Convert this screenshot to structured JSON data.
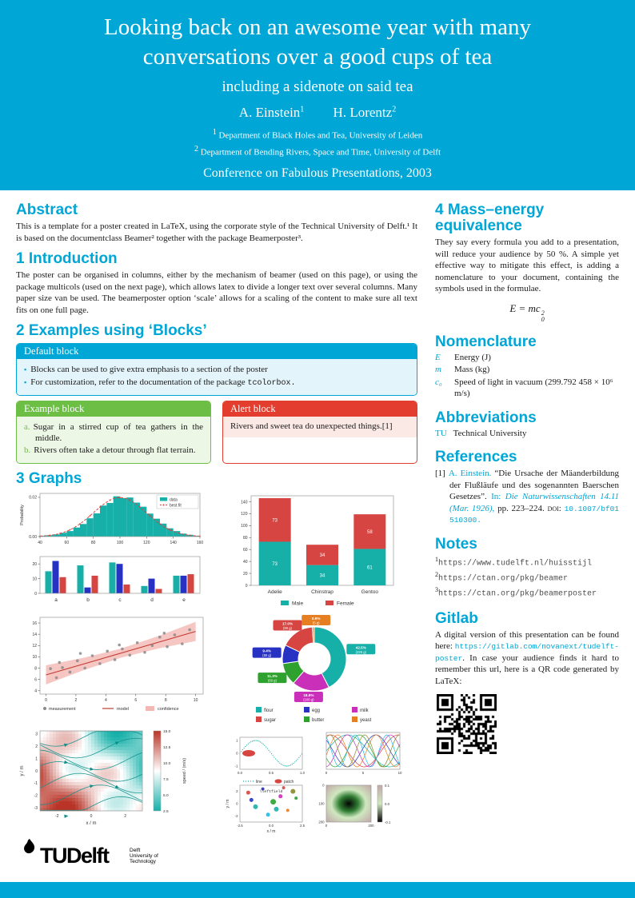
{
  "colors": {
    "accent": "#00A6D6",
    "green": "#6CBE45",
    "alert_red": "#E23D2E"
  },
  "header": {
    "title_line1": "Looking back on an awesome year with many",
    "title_line2": "conversations over a good cups of tea",
    "subtitle": "including a sidenote on said tea",
    "authors": [
      {
        "name": "A. Einstein",
        "sup": "1"
      },
      {
        "name": "H. Lorentz",
        "sup": "2"
      }
    ],
    "affiliations": [
      {
        "sup": "1",
        "text": "Department of Black Holes and Tea, University of Leiden"
      },
      {
        "sup": "2",
        "text": "Department of Bending Rivers, Space and Time, University of Delft"
      }
    ],
    "conference": "Conference on Fabulous Presentations, 2003"
  },
  "left": {
    "abstract": {
      "heading": "Abstract",
      "text": "This is a template for a poster created in LaTeX, using the corporate style of the Technical University of Delft.¹ It is based on the documentclass Beamer² together with the package Beamerposter³."
    },
    "intro": {
      "heading": "1 Introduction",
      "text": "The poster can be organised in columns, either by the mechanism of beamer (used on this page), or using the package multicols (used on the next page), which allows latex to divide a longer text over several columns. Many paper size van be used. The beamerposter option ‘scale’ allows for a scaling of the content to make sure all text fits on one full page."
    },
    "examples": {
      "heading": "2 Examples using ‘Blocks’",
      "default_block": {
        "title": "Default block",
        "item1": "Blocks can be used to give extra emphasis to a section of the poster",
        "item2_text": "For customization, refer to the documentation of the package ",
        "item2_code": "tcolorbox."
      },
      "example_block": {
        "title": "Example block",
        "items": [
          {
            "marker": "a.",
            "text": "Sugar in a stirred cup of tea gathers in the middle."
          },
          {
            "marker": "b.",
            "text": "Rivers often take a detour through flat terrain."
          }
        ]
      },
      "alert_block": {
        "title": "Alert block",
        "text": "Rivers and sweet tea do unexpected things.[1]"
      }
    },
    "graphs_heading": "3 Graphs"
  },
  "right": {
    "mass": {
      "heading": "4 Mass–energy equivalence",
      "text": "They say every formula you add to a presentation, will reduce your audience by 50 %. A simple yet effective way to mitigate this effect, is adding a nomenclature to your document, containing the symbols used in the formulae.",
      "formula_base": "E = mc",
      "formula_sup": "2",
      "formula_sub": "0"
    },
    "nomenclature": {
      "heading": "Nomenclature",
      "items": [
        {
          "symbol": "E",
          "desc": "Energy (J)"
        },
        {
          "symbol": "m",
          "desc": "Mass (kg)"
        },
        {
          "symbol": "c₀",
          "desc": "Speed of light in vacuum (299.792 458 × 10⁶ m/s)"
        }
      ]
    },
    "abbreviations": {
      "heading": "Abbreviations",
      "items": [
        {
          "abbr": "TU",
          "desc": "Technical University"
        }
      ]
    },
    "references": {
      "heading": "References",
      "entry": {
        "num": "[1]",
        "authors": "A. Einstein.",
        "title": "“Die Ursache der Mäanderbildung der Flußläufe und des sogenannten Baerschen Gesetzes”.",
        "in_label": "In:",
        "journal": "Die Naturwissenschaften 14.11 (Mar. 1926),",
        "pages": "pp. 223–224.",
        "doi_label": "doi:",
        "doi": "10.1007/bf01510300."
      }
    },
    "notes": {
      "heading": "Notes",
      "items": [
        {
          "sup": "1",
          "url": "https://www.tudelft.nl/huisstijl"
        },
        {
          "sup": "2",
          "url": "https://ctan.org/pkg/beamer"
        },
        {
          "sup": "3",
          "url": "https://ctan.org/pkg/beamerposter"
        }
      ]
    },
    "gitlab": {
      "heading": "Gitlab",
      "pre": "A digital version of this presentation can be found here: ",
      "link": "https://gitlab.com/novanext/tudelft-poster",
      "post": ". In case your audience finds it hard to remember this url, here is a QR code generated by LaTeX:"
    }
  },
  "logo": {
    "text": "TUDelft",
    "tagline": [
      "Delft",
      "University of",
      "Technology"
    ]
  },
  "chart_data": [
    {
      "id": "histogram",
      "type": "bar",
      "ylabel": "Probability",
      "x_ticks": [
        40,
        60,
        80,
        100,
        120,
        140,
        160
      ],
      "y_ticks": [
        "0.00",
        "0.02"
      ],
      "bin_start": 40,
      "bin_width": 5,
      "values": [
        0.0004,
        0.0007,
        0.0011,
        0.0019,
        0.0028,
        0.0046,
        0.0064,
        0.0093,
        0.0118,
        0.0158,
        0.0171,
        0.0205,
        0.0196,
        0.0199,
        0.0173,
        0.0152,
        0.0117,
        0.0091,
        0.0066,
        0.0042,
        0.0028,
        0.0015,
        0.0009,
        0.0004
      ],
      "fit": {
        "mean": 100,
        "std": 20,
        "peak": 0.0199
      },
      "legend": [
        "data",
        "best fit"
      ],
      "bar_color": "#16b0a9",
      "fit_color": "#d64541"
    },
    {
      "id": "grouped_bars",
      "type": "bar",
      "categories": [
        "a",
        "b",
        "c",
        "d",
        "e"
      ],
      "series": [
        {
          "color": "#16b0a9",
          "values": [
            15,
            19,
            21,
            5,
            12
          ]
        },
        {
          "color": "#2832c2",
          "values": [
            22,
            4,
            20,
            10,
            12
          ]
        },
        {
          "color": "#d64541",
          "values": [
            11,
            12,
            6,
            3,
            13
          ]
        }
      ],
      "y_ticks": [
        0,
        10,
        20
      ],
      "ymax": 25
    },
    {
      "id": "stacked_bars",
      "type": "bar",
      "categories": [
        "Adelie",
        "Chinstrap",
        "Gentoo"
      ],
      "series": [
        {
          "name": "Male",
          "color": "#16b0a9",
          "values": [
            73,
            34,
            61
          ]
        },
        {
          "name": "Female",
          "color": "#d64541",
          "values": [
            73,
            34,
            58
          ]
        }
      ],
      "y_ticks": [
        0,
        20,
        40,
        60,
        80,
        100,
        120,
        140
      ],
      "ymax": 150
    },
    {
      "id": "regression",
      "type": "scatter",
      "points": [
        [
          0.3,
          7.9
        ],
        [
          0.7,
          6.3
        ],
        [
          1.1,
          8.1
        ],
        [
          1.6,
          7.3
        ],
        [
          2.1,
          9.3
        ],
        [
          2.6,
          8.0
        ],
        [
          3.1,
          10.2
        ],
        [
          3.6,
          8.8
        ],
        [
          4.1,
          11.0
        ],
        [
          4.6,
          9.5
        ],
        [
          5.1,
          11.4
        ],
        [
          5.6,
          10.3
        ],
        [
          6.1,
          12.5
        ],
        [
          6.6,
          10.8
        ],
        [
          7.1,
          12.0
        ],
        [
          7.6,
          13.5
        ],
        [
          8.1,
          11.8
        ],
        [
          8.6,
          13.9
        ],
        [
          9.1,
          12.3
        ],
        [
          9.6,
          14.8
        ],
        [
          2.3,
          10.6
        ],
        [
          4.9,
          12.1
        ],
        [
          7.9,
          14.2
        ],
        [
          0.9,
          9.0
        ]
      ],
      "model": {
        "intercept": 6.8,
        "slope": 0.77
      },
      "band_x": [
        0,
        2.5,
        5,
        7.5,
        10
      ],
      "band_halfwidth": [
        1.7,
        1.1,
        0.8,
        1.1,
        1.7
      ],
      "x_ticks": [
        0,
        2,
        4,
        6,
        8,
        10
      ],
      "y_ticks": [
        4,
        6,
        8,
        10,
        12,
        14,
        16
      ],
      "legend": [
        "measurement",
        "model",
        "confidence"
      ],
      "point_color": "#8a8a8a",
      "line_color": "#c23b32",
      "band_color": "#f3b8b3"
    },
    {
      "id": "donut",
      "type": "pie",
      "slices": [
        {
          "label": "flour",
          "grams": 225,
          "pct": "42.5%",
          "color": "#16b0a9"
        },
        {
          "label": "sugar",
          "grams": 90,
          "pct": "17.0%",
          "color": "#d64541"
        },
        {
          "label": "egg",
          "grams": 50,
          "pct": "9.4%",
          "color": "#2832c2"
        },
        {
          "label": "butter",
          "grams": 60,
          "pct": "11.3%",
          "color": "#2ea12e"
        },
        {
          "label": "milk",
          "grams": 100,
          "pct": "18.9%",
          "color": "#c92fb8"
        },
        {
          "label": "yeast",
          "grams": 5,
          "pct": "0.9%",
          "color": "#e67e22"
        }
      ],
      "legend_rows": [
        [
          "flour",
          "egg",
          "milk"
        ],
        [
          "sugar",
          "butter",
          "yeast"
        ]
      ]
    },
    {
      "id": "streamplot",
      "type": "heatmap",
      "xlabel": "x / m",
      "ylabel": "y / m",
      "x_ticks": [
        -2,
        0,
        2
      ],
      "y_ticks": [
        -3,
        -2,
        -1,
        0,
        1,
        2,
        3
      ],
      "colorbar_label": "speed / (m/s)",
      "colorbar_ticks": [
        2.5,
        5.0,
        7.5,
        10.0,
        12.5,
        15.0
      ],
      "vmin": 2.5,
      "vmax": 15,
      "low_color": "#16b0a9",
      "high_color": "#b93427"
    },
    {
      "id": "mini_panels",
      "type": "line",
      "sine": {
        "legend": [
          "line",
          "patch"
        ],
        "x_ticks": [
          "0.0",
          "0.5",
          "1.0"
        ],
        "y_ticks": [
          -1,
          0,
          1
        ],
        "line_color": "#16b0a9",
        "patch_color": "#d64541"
      },
      "lines": {
        "x_ticks": [
          0,
          5,
          10
        ],
        "colors": [
          "#16b0a9",
          "#d64541",
          "#2832c2",
          "#2ea12e",
          "#c92fb8",
          "#e67e22",
          "#8a8a2a",
          "#22b8e8"
        ]
      },
      "scatter": {
        "annotation": "\\leftfield",
        "xlabel": "x / m",
        "ylabel": "y / m",
        "x_ticks": [
          "-2.5",
          "0.0",
          "2.5"
        ],
        "points": [
          [
            -2.2,
            1.8,
            "#d64541",
            2.5
          ],
          [
            -1.5,
            -0.5,
            "#16b0a9",
            3
          ],
          [
            -0.8,
            2.4,
            "#2832c2",
            2
          ],
          [
            0.2,
            0.3,
            "#2ea12e",
            3.5
          ],
          [
            0.9,
            1.2,
            "#c92fb8",
            2.5
          ],
          [
            1.6,
            -1.1,
            "#e67e22",
            2
          ],
          [
            2.1,
            2.0,
            "#8a8a2a",
            3
          ],
          [
            -0.3,
            -1.8,
            "#22b8e8",
            2.5
          ],
          [
            1.2,
            2.6,
            "#d64541",
            2
          ],
          [
            -1.9,
            0.6,
            "#2832c2",
            2.5
          ],
          [
            0.5,
            -0.9,
            "#16b0a9",
            3
          ],
          [
            2.4,
            0.9,
            "#2ea12e",
            2
          ]
        ]
      },
      "image": {
        "x_ticks": [
          0,
          200
        ],
        "y_ticks": [
          0,
          100,
          200
        ],
        "colorbar_ticks": [
          "0.1",
          "0.0",
          "-0.1"
        ]
      }
    }
  ]
}
